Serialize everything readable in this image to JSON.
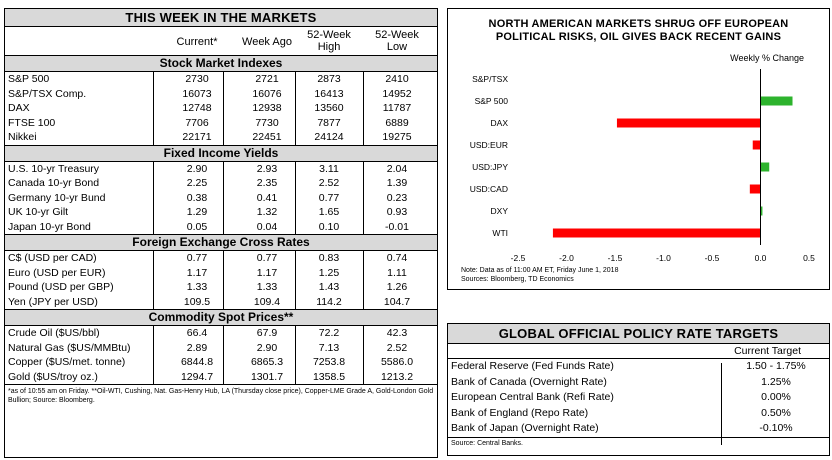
{
  "markets": {
    "title": "THIS WEEK IN THE MARKETS",
    "headers": {
      "current": "Current*",
      "week_ago": "Week Ago",
      "high": "52-Week\nHigh",
      "low": "52-Week\nLow"
    },
    "sections": [
      {
        "name": "Stock Market Indexes",
        "rows": [
          [
            "S&P 500",
            "2730",
            "2721",
            "2873",
            "2410"
          ],
          [
            "S&P/TSX Comp.",
            "16073",
            "16076",
            "16413",
            "14952"
          ],
          [
            "DAX",
            "12748",
            "12938",
            "13560",
            "11787"
          ],
          [
            "FTSE 100",
            "7706",
            "7730",
            "7877",
            "6889"
          ],
          [
            "Nikkei",
            "22171",
            "22451",
            "24124",
            "19275"
          ]
        ]
      },
      {
        "name": "Fixed Income Yields",
        "rows": [
          [
            "U.S. 10-yr Treasury",
            "2.90",
            "2.93",
            "3.11",
            "2.04"
          ],
          [
            "Canada 10-yr Bond",
            "2.25",
            "2.35",
            "2.52",
            "1.39"
          ],
          [
            "Germany 10-yr Bund",
            "0.38",
            "0.41",
            "0.77",
            "0.23"
          ],
          [
            "UK 10-yr Gilt",
            "1.29",
            "1.32",
            "1.65",
            "0.93"
          ],
          [
            "Japan 10-yr Bond",
            "0.05",
            "0.04",
            "0.10",
            "-0.01"
          ]
        ]
      },
      {
        "name": "Foreign Exchange Cross Rates",
        "rows": [
          [
            "C$ (USD per CAD)",
            "0.77",
            "0.77",
            "0.83",
            "0.74"
          ],
          [
            "Euro (USD per EUR)",
            "1.17",
            "1.17",
            "1.25",
            "1.11"
          ],
          [
            "Pound (USD per GBP)",
            "1.33",
            "1.33",
            "1.43",
            "1.26"
          ],
          [
            "Yen (JPY per USD)",
            "109.5",
            "109.4",
            "114.2",
            "104.7"
          ]
        ]
      },
      {
        "name": "Commodity Spot Prices**",
        "rows": [
          [
            "Crude Oil ($US/bbl)",
            "66.4",
            "67.9",
            "72.2",
            "42.3"
          ],
          [
            "Natural Gas ($US/MMBtu)",
            "2.89",
            "2.90",
            "7.13",
            "2.52"
          ],
          [
            "Copper ($US/met. tonne)",
            "6844.8",
            "6865.3",
            "7253.8",
            "5586.0"
          ],
          [
            "Gold ($US/troy oz.)",
            "1294.7",
            "1301.7",
            "1358.5",
            "1213.2"
          ]
        ]
      }
    ],
    "footnote": "*as of 10:55 am on Friday. **Oil-WTI, Cushing, Nat. Gas-Henry Hub, LA (Thursday close price), Copper-LME Grade A, Gold-London Gold Bullion; Source: Bloomberg."
  },
  "chart_data": {
    "type": "bar",
    "orientation": "horizontal",
    "title": "NORTH AMERICAN MARKETS SHRUG OFF EUROPEAN POLITICAL RISKS, OIL GIVES BACK RECENT GAINS",
    "subtitle": "Weekly % Change",
    "categories": [
      "S&P/TSX",
      "S&P 500",
      "DAX",
      "USD:EUR",
      "USD:JPY",
      "USD:CAD",
      "DXY",
      "WTI"
    ],
    "values": [
      0.0,
      0.33,
      -1.48,
      -0.08,
      0.09,
      -0.11,
      0.02,
      -2.14
    ],
    "xlim": [
      -2.5,
      0.5
    ],
    "xticks": [
      "-2.5",
      "-2.0",
      "-1.5",
      "-1.0",
      "-0.5",
      "0.0",
      "0.5"
    ],
    "positive_color": "#2db32d",
    "negative_color": "#ff0000",
    "note": "Note: Data as of 11:00 AM ET, Friday June 1, 2018",
    "source": "Sources: Bloomberg, TD Economics"
  },
  "policy": {
    "title": "GLOBAL OFFICIAL POLICY RATE TARGETS",
    "subheader": "Current Target",
    "rows": [
      [
        "Federal Reserve (Fed Funds Rate)",
        "1.50 - 1.75%"
      ],
      [
        "Bank of Canada (Overnight Rate)",
        "1.25%"
      ],
      [
        "European Central Bank (Refi Rate)",
        "0.00%"
      ],
      [
        "Bank of England (Repo Rate)",
        "0.50%"
      ],
      [
        "Bank of Japan (Overnight Rate)",
        "-0.10%"
      ]
    ],
    "source": "Source: Central Banks."
  }
}
